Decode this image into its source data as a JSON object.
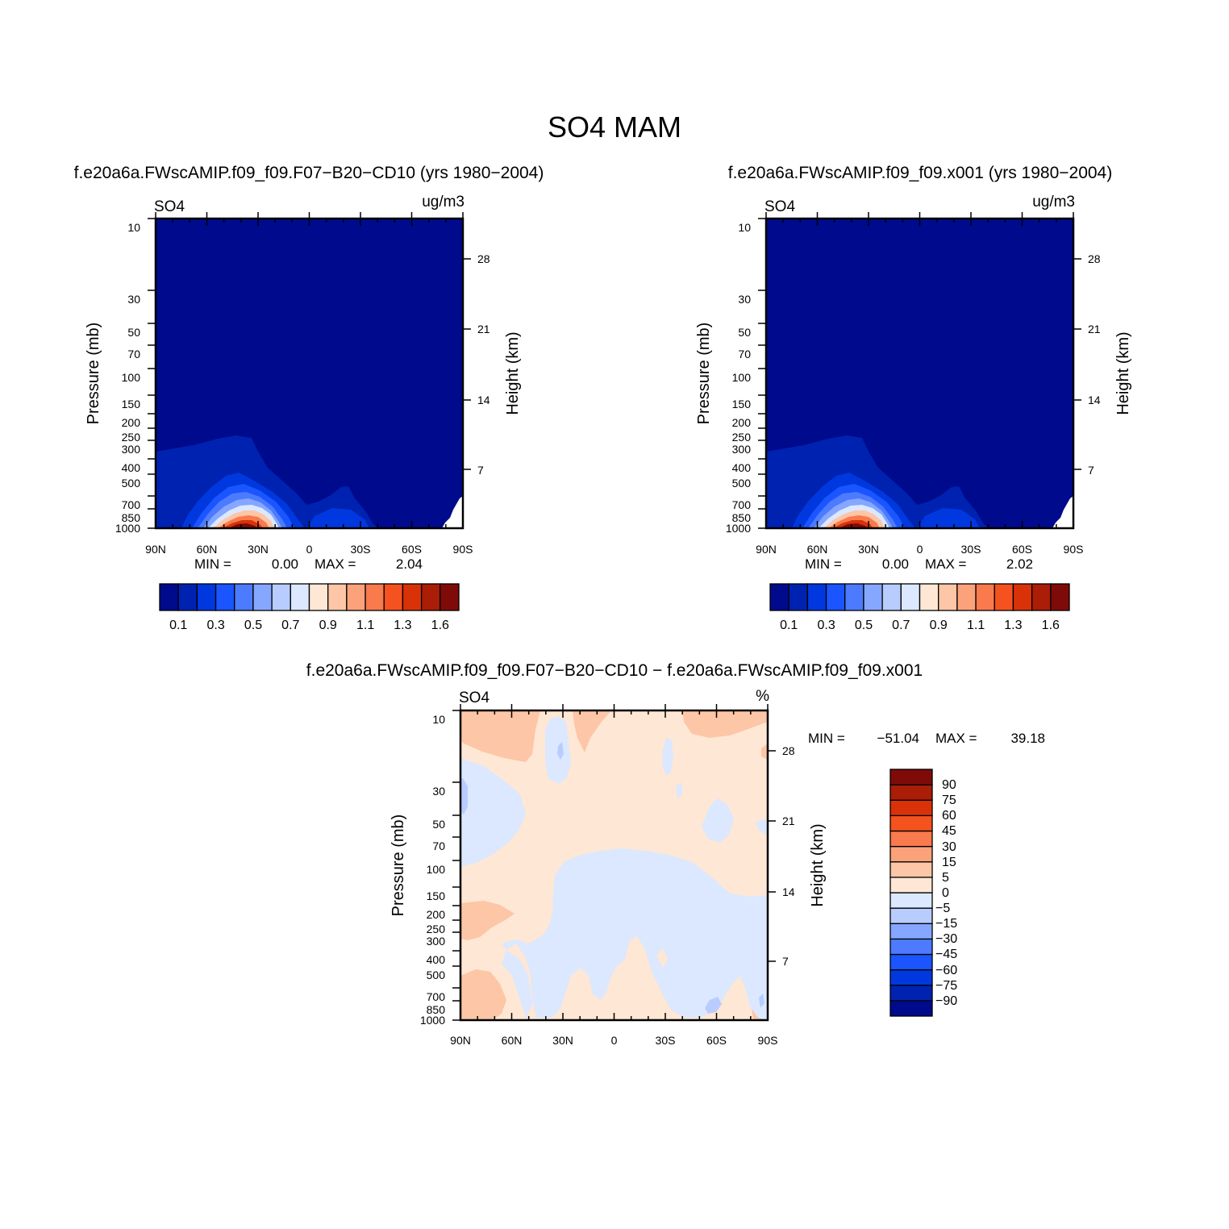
{
  "main_title": "SO4  MAM",
  "colors": {
    "abs_levels": [
      "#000a8c",
      "#0022b0",
      "#0038e0",
      "#1a55ff",
      "#4c7bff",
      "#86a7ff",
      "#b8ccff",
      "#dbe8ff",
      "#fee7d4",
      "#fdc6a6",
      "#fba27a",
      "#f97a4d",
      "#f4521f",
      "#d93209",
      "#aa1d06",
      "#7f0b08"
    ],
    "diff_levels": [
      "#000a8c",
      "#0022b0",
      "#0038e0",
      "#1a55ff",
      "#4c7bff",
      "#86a7ff",
      "#b8ccff",
      "#dbe8ff",
      "#fee7d4",
      "#fdc6a6",
      "#fba27a",
      "#f97a4d",
      "#f4521f",
      "#d93209",
      "#aa1d06",
      "#7f0b08"
    ]
  },
  "chart_data": [
    {
      "type": "contour",
      "title": "f.e20a6a.FWscAMIP.f09_f09.F07−B20−CD10 (yrs 1980−2004)",
      "variable": "SO4",
      "units": "ug/m3",
      "xlabel": "",
      "ylabel": "Pressure (mb)",
      "y2label": "Height (km)",
      "xticks": [
        "90N",
        "60N",
        "30N",
        "0",
        "30S",
        "60S",
        "90S"
      ],
      "yticks": [
        "10",
        "30",
        "50",
        "70",
        "100",
        "150",
        "200",
        "250",
        "300",
        "400",
        "500",
        "700",
        "850",
        "1000"
      ],
      "y2ticks": [
        "28",
        "21",
        "14",
        "7"
      ],
      "xlim": [
        90,
        -90
      ],
      "ylim": [
        1000,
        10
      ],
      "y_scale": "log",
      "min_label": "MIN =",
      "min_value": "0.00",
      "max_label": "MAX =",
      "max_value": "2.04",
      "min": 0.0,
      "max": 2.04,
      "colorbar_labels": [
        "0.1",
        "0.3",
        "0.5",
        "0.7",
        "0.9",
        "1.1",
        "1.3",
        "1.6"
      ],
      "peak": {
        "lat": 35,
        "pressure": 1000,
        "value": 2.04
      }
    },
    {
      "type": "contour",
      "title": "f.e20a6a.FWscAMIP.f09_f09.x001 (yrs 1980−2004)",
      "variable": "SO4",
      "units": "ug/m3",
      "xlabel": "",
      "ylabel": "Pressure (mb)",
      "y2label": "Height (km)",
      "xticks": [
        "90N",
        "60N",
        "30N",
        "0",
        "30S",
        "60S",
        "90S"
      ],
      "yticks": [
        "10",
        "30",
        "50",
        "70",
        "100",
        "150",
        "200",
        "250",
        "300",
        "400",
        "500",
        "700",
        "850",
        "1000"
      ],
      "y2ticks": [
        "28",
        "21",
        "14",
        "7"
      ],
      "xlim": [
        90,
        -90
      ],
      "ylim": [
        1000,
        10
      ],
      "y_scale": "log",
      "min_label": "MIN =",
      "min_value": "0.00",
      "max_label": "MAX =",
      "max_value": "2.02",
      "min": 0.0,
      "max": 2.02,
      "colorbar_labels": [
        "0.1",
        "0.3",
        "0.5",
        "0.7",
        "0.9",
        "1.1",
        "1.3",
        "1.6"
      ],
      "peak": {
        "lat": 35,
        "pressure": 1000,
        "value": 2.02
      }
    },
    {
      "type": "contour",
      "title": "f.e20a6a.FWscAMIP.f09_f09.F07−B20−CD10 − f.e20a6a.FWscAMIP.f09_f09.x001",
      "variable": "SO4",
      "units": "%",
      "xlabel": "",
      "ylabel": "Pressure (mb)",
      "y2label": "Height (km)",
      "xticks": [
        "90N",
        "60N",
        "30N",
        "0",
        "30S",
        "60S",
        "90S"
      ],
      "yticks": [
        "10",
        "30",
        "50",
        "70",
        "100",
        "150",
        "200",
        "250",
        "300",
        "400",
        "500",
        "700",
        "850",
        "1000"
      ],
      "y2ticks": [
        "28",
        "21",
        "14",
        "7"
      ],
      "xlim": [
        90,
        -90
      ],
      "ylim": [
        1000,
        10
      ],
      "y_scale": "log",
      "min_label": "MIN =",
      "min_value": "−51.04",
      "max_label": "MAX =",
      "max_value": "39.18",
      "min": -51.04,
      "max": 39.18,
      "colorbar_labels": [
        "90",
        "75",
        "60",
        "45",
        "30",
        "15",
        "5",
        "0",
        "−5",
        "−15",
        "−30",
        "−45",
        "−60",
        "−75",
        "−90"
      ]
    }
  ]
}
